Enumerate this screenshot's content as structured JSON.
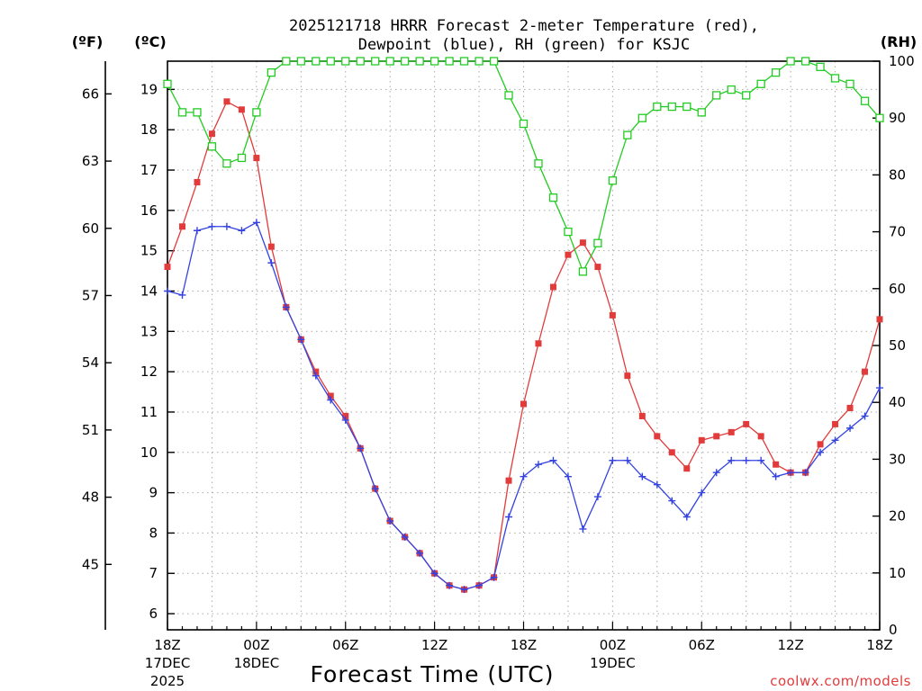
{
  "chart_data": {
    "type": "line",
    "title_line1": "2025121718 HRRR Forecast 2-meter Temperature (red),",
    "title_line2": "Dewpoint (blue), RH (green) for KSJC",
    "unit_f": "(ºF)",
    "unit_c": "(ºC)",
    "unit_rh": "(RH)",
    "xlabel": "Forecast Time (UTC)",
    "credit": "coolwx.com/models",
    "x_hours": [
      0,
      1,
      2,
      3,
      4,
      5,
      6,
      7,
      8,
      9,
      10,
      11,
      12,
      13,
      14,
      15,
      16,
      17,
      18,
      19,
      20,
      21,
      22,
      23,
      24,
      25,
      26,
      27,
      28,
      29,
      30,
      31,
      32,
      33,
      34,
      35,
      36,
      37,
      38,
      39,
      40,
      41,
      42,
      43,
      44,
      45,
      46,
      47,
      48
    ],
    "x_ticks": [
      {
        "hour": 0,
        "label": "18Z",
        "line2": "17DEC",
        "line3": "2025"
      },
      {
        "hour": 6,
        "label": "00Z",
        "line2": "18DEC",
        "line3": ""
      },
      {
        "hour": 12,
        "label": "06Z",
        "line2": "",
        "line3": ""
      },
      {
        "hour": 18,
        "label": "12Z",
        "line2": "",
        "line3": ""
      },
      {
        "hour": 24,
        "label": "18Z",
        "line2": "",
        "line3": ""
      },
      {
        "hour": 30,
        "label": "00Z",
        "line2": "19DEC",
        "line3": ""
      },
      {
        "hour": 36,
        "label": "06Z",
        "line2": "",
        "line3": ""
      },
      {
        "hour": 42,
        "label": "12Z",
        "line2": "",
        "line3": ""
      },
      {
        "hour": 48,
        "label": "18Z",
        "line2": "",
        "line3": ""
      }
    ],
    "celsius_axis": {
      "range": [
        5.6,
        19.7
      ],
      "ticks": [
        6,
        7,
        8,
        9,
        10,
        11,
        12,
        13,
        14,
        15,
        16,
        17,
        18,
        19
      ]
    },
    "fahrenheit_axis": {
      "ticks": [
        45,
        48,
        51,
        54,
        57,
        60,
        63,
        66
      ]
    },
    "rh_axis": {
      "range": [
        0,
        100
      ],
      "ticks": [
        0,
        10,
        20,
        30,
        40,
        50,
        60,
        70,
        80,
        90,
        100
      ]
    },
    "grid": true,
    "series": [
      {
        "name": "Temperature",
        "color": "#e23b3b",
        "marker": "filled-square",
        "axis": "celsius",
        "values": [
          14.6,
          15.6,
          16.7,
          17.9,
          18.7,
          18.5,
          17.3,
          15.1,
          13.6,
          12.8,
          12.0,
          11.4,
          10.9,
          10.1,
          9.1,
          8.3,
          7.9,
          7.5,
          7.0,
          6.7,
          6.6,
          6.7,
          6.9,
          9.3,
          11.2,
          12.7,
          14.1,
          14.9,
          15.2,
          14.6,
          13.4,
          11.9,
          10.9,
          10.4,
          10.0,
          9.6,
          10.3,
          10.4,
          10.5,
          10.7,
          10.4,
          9.7,
          9.5,
          9.5,
          10.2,
          10.7,
          11.1,
          12.0,
          13.3
        ]
      },
      {
        "name": "Dewpoint",
        "color": "#3443e0",
        "marker": "plus",
        "axis": "celsius",
        "values": [
          14.0,
          13.9,
          15.5,
          15.6,
          15.6,
          15.5,
          15.7,
          14.7,
          13.6,
          12.8,
          11.9,
          11.3,
          10.8,
          10.1,
          9.1,
          8.3,
          7.9,
          7.5,
          7.0,
          6.7,
          6.6,
          6.7,
          6.9,
          8.4,
          9.4,
          9.7,
          9.8,
          9.4,
          8.1,
          8.9,
          9.8,
          9.8,
          9.4,
          9.2,
          8.8,
          8.4,
          9.0,
          9.5,
          9.8,
          9.8,
          9.8,
          9.4,
          9.5,
          9.5,
          10.0,
          10.3,
          10.6,
          10.9,
          11.6
        ]
      },
      {
        "name": "RH",
        "color": "#22cc22",
        "marker": "open-square",
        "axis": "rh",
        "values": [
          96,
          91,
          91,
          85,
          82,
          83,
          91,
          98,
          100,
          100,
          100,
          100,
          100,
          100,
          100,
          100,
          100,
          100,
          100,
          100,
          100,
          100,
          100,
          94,
          89,
          82,
          76,
          70,
          63,
          68,
          79,
          87,
          90,
          92,
          92,
          92,
          91,
          94,
          95,
          94,
          96,
          98,
          100,
          100,
          99,
          97,
          96,
          93,
          90
        ]
      }
    ]
  }
}
